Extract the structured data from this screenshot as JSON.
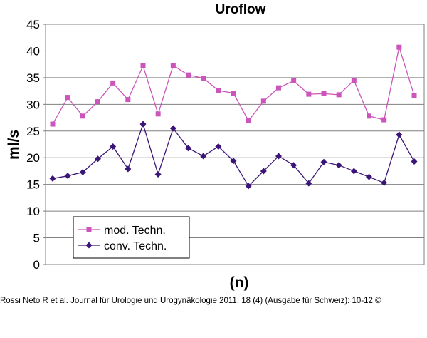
{
  "citation": "Rossi Neto R et al. Journal für Urologie und Urogynäkologie 2011; 18 (4) (Ausgabe für Schweiz): 10-12 ©",
  "chart_data": {
    "type": "line",
    "title": "Uroflow",
    "xlabel": "(n)",
    "ylabel": "ml/s",
    "ylim": [
      0,
      45
    ],
    "yticks": [
      0,
      5,
      10,
      15,
      20,
      25,
      30,
      35,
      40,
      45
    ],
    "grid": true,
    "legend_position": "bottom-left",
    "series": [
      {
        "name": "mod. Techn.",
        "color": "#cc55bb",
        "marker": "square",
        "values": [
          26.3,
          31.3,
          27.8,
          30.5,
          34.0,
          30.9,
          37.2,
          28.2,
          37.3,
          35.5,
          34.9,
          32.6,
          32.1,
          26.9,
          30.6,
          33.1,
          34.4,
          31.9,
          32.0,
          31.8,
          34.5,
          27.8,
          27.1,
          40.7,
          31.7
        ]
      },
      {
        "name": "conv. Techn.",
        "color": "#3a1577",
        "marker": "diamond",
        "values": [
          16.1,
          16.6,
          17.3,
          19.8,
          22.1,
          17.9,
          26.3,
          16.9,
          25.5,
          21.8,
          20.3,
          22.1,
          19.4,
          14.7,
          17.5,
          20.3,
          18.6,
          15.2,
          19.2,
          18.6,
          17.5,
          16.4,
          15.3,
          24.3,
          19.3
        ]
      }
    ]
  }
}
